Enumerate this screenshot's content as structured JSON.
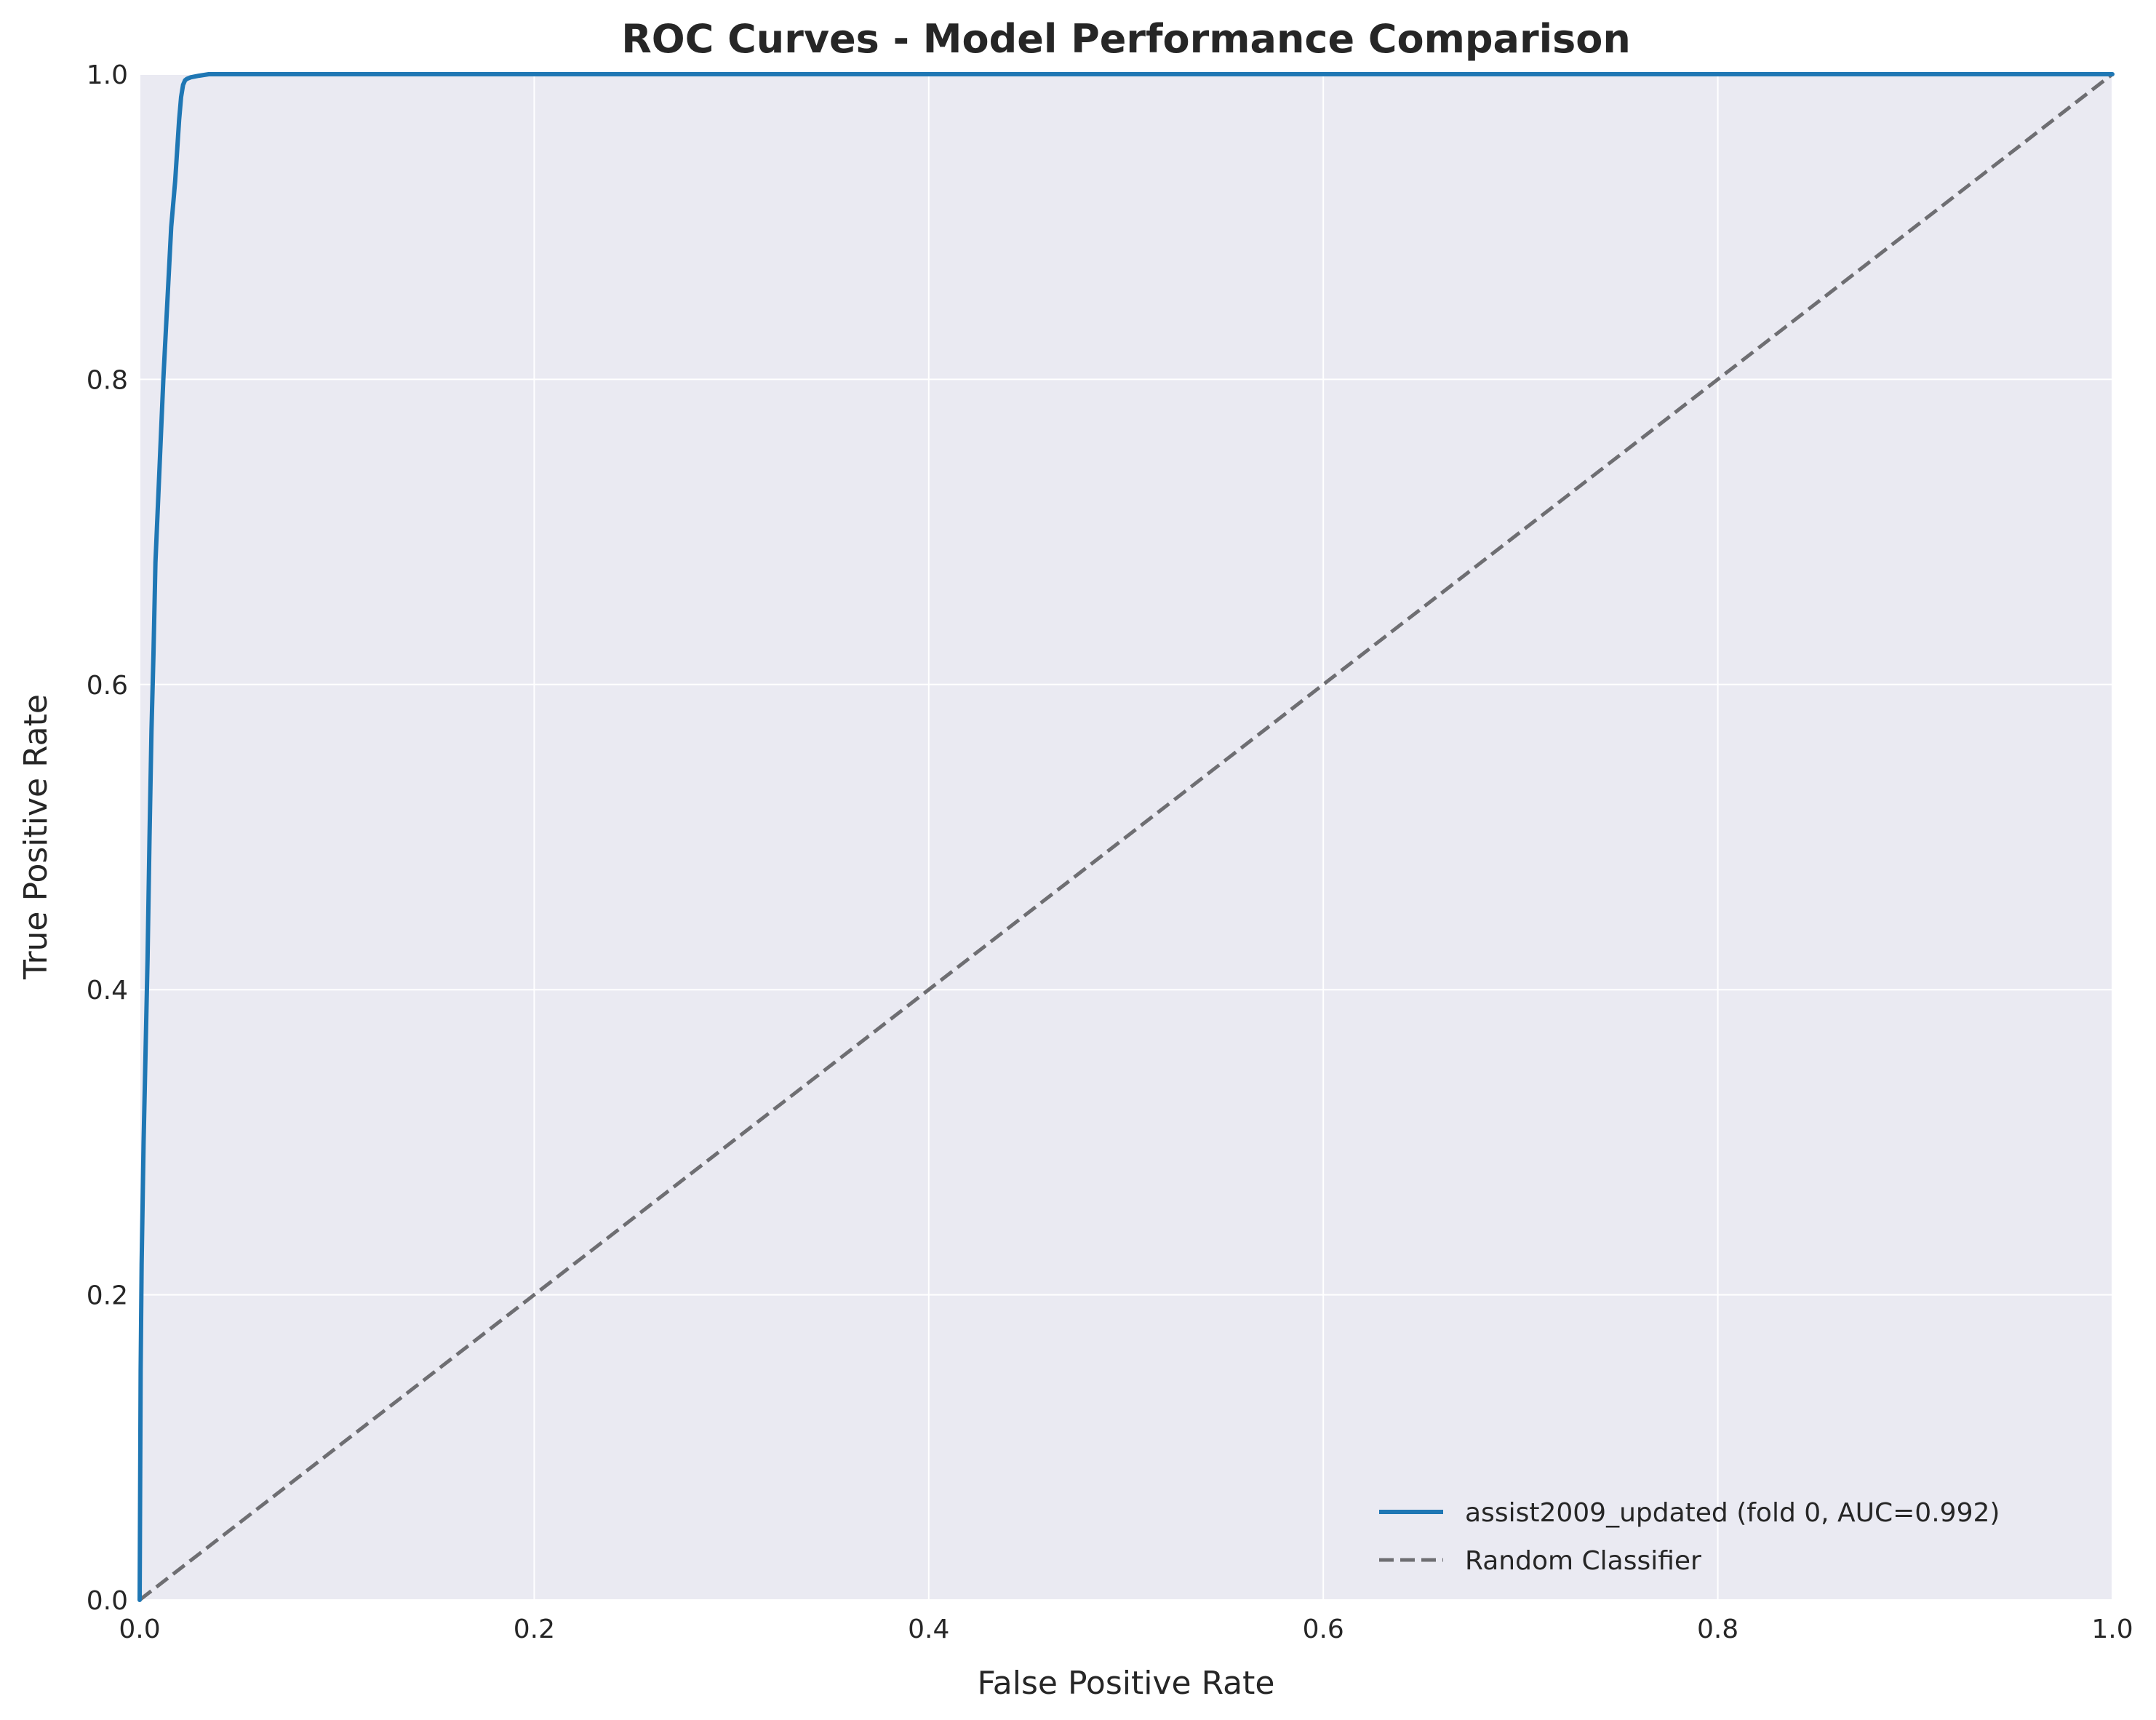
{
  "chart_data": {
    "type": "line",
    "title": "ROC Curves - Model Performance Comparison",
    "xlabel": "False Positive Rate",
    "ylabel": "True Positive Rate",
    "xlim": [
      0.0,
      1.0
    ],
    "ylim": [
      0.0,
      1.0
    ],
    "xticks": [
      0.0,
      0.2,
      0.4,
      0.6,
      0.8,
      1.0
    ],
    "yticks": [
      0.0,
      0.2,
      0.4,
      0.6,
      0.8,
      1.0
    ],
    "xtick_labels": [
      "0.0",
      "0.2",
      "0.4",
      "0.6",
      "0.8",
      "1.0"
    ],
    "ytick_labels": [
      "0.0",
      "0.2",
      "0.4",
      "0.6",
      "0.8",
      "1.0"
    ],
    "grid": true,
    "background_color": "#eaeaf2",
    "grid_color": "#ffffff",
    "legend_position": "lower-right",
    "series": [
      {
        "name": "assist2009_updated (fold 0, AUC=0.992)",
        "color": "#1f77b4",
        "style": "solid",
        "x": [
          0.0,
          0.0005,
          0.001,
          0.002,
          0.003,
          0.004,
          0.005,
          0.006,
          0.007,
          0.008,
          0.01,
          0.012,
          0.014,
          0.016,
          0.018,
          0.019,
          0.02,
          0.021,
          0.022,
          0.023,
          0.024,
          0.026,
          0.03,
          0.035,
          0.04,
          0.05,
          0.1,
          0.2,
          0.4,
          0.6,
          0.8,
          1.0
        ],
        "y": [
          0.0,
          0.15,
          0.22,
          0.3,
          0.36,
          0.42,
          0.5,
          0.57,
          0.62,
          0.68,
          0.74,
          0.8,
          0.85,
          0.9,
          0.93,
          0.95,
          0.97,
          0.985,
          0.993,
          0.996,
          0.997,
          0.998,
          0.999,
          1.0,
          1.0,
          1.0,
          1.0,
          1.0,
          1.0,
          1.0,
          1.0,
          1.0
        ]
      },
      {
        "name": "Random Classifier",
        "color": "#6e6e72",
        "style": "dashed",
        "x": [
          0.0,
          1.0
        ],
        "y": [
          0.0,
          1.0
        ]
      }
    ]
  }
}
